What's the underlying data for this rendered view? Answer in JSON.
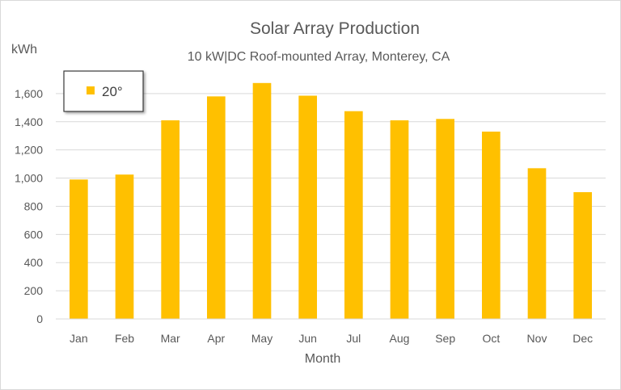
{
  "chart_data": {
    "type": "bar",
    "title": "Solar Array Production",
    "subtitle": "10 kW|DC Roof-mounted Array, Monterey, CA",
    "ylabel": "kWh",
    "xlabel": "Month",
    "categories": [
      "Jan",
      "Feb",
      "Mar",
      "Apr",
      "May",
      "Jun",
      "Jul",
      "Aug",
      "Sep",
      "Oct",
      "Nov",
      "Dec"
    ],
    "series": [
      {
        "name": "20°",
        "color": "#ffc000",
        "values": [
          990,
          1025,
          1410,
          1580,
          1675,
          1585,
          1475,
          1410,
          1420,
          1330,
          1070,
          900
        ]
      }
    ],
    "ylim": [
      0,
      1800
    ],
    "yticks": [
      0,
      200,
      400,
      600,
      800,
      1000,
      1200,
      1400,
      1600
    ],
    "ytick_labels": [
      "0",
      "200",
      "400",
      "600",
      "800",
      "1,000",
      "1,200",
      "1,400",
      "1,600"
    ],
    "grid": true,
    "legend_position": "top-left"
  }
}
